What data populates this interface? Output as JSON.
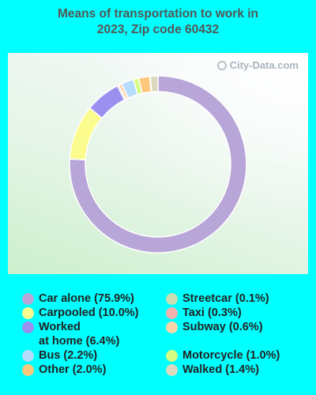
{
  "title_lines": [
    "Means of transportation to work in",
    "2023, Zip code 60432"
  ],
  "watermark": "City-Data.com",
  "chart_data": {
    "type": "pie",
    "style": "donut",
    "title": "Means of transportation to work in 2023, Zip code 60432",
    "legend_placement": "bottom",
    "slices": [
      {
        "label": "Car alone",
        "value": 75.9,
        "color": "#b9a6d8"
      },
      {
        "label": "Carpooled",
        "value": 10.0,
        "color": "#fcfc8e"
      },
      {
        "label": "Worked at home",
        "value": 6.4,
        "color": "#9b8ff0"
      },
      {
        "label": "Taxi",
        "value": 0.3,
        "color": "#f3b1ae"
      },
      {
        "label": "Subway",
        "value": 0.6,
        "color": "#fbd6a8"
      },
      {
        "label": "Bus",
        "value": 2.2,
        "color": "#b6dcfb"
      },
      {
        "label": "Motorcycle",
        "value": 1.0,
        "color": "#d5fc82"
      },
      {
        "label": "Other",
        "value": 2.0,
        "color": "#fcc97c"
      },
      {
        "label": "Streetcar",
        "value": 0.1,
        "color": "#c9ddb0"
      },
      {
        "label": "Walked",
        "value": 1.4,
        "color": "#dcd8c0"
      }
    ]
  },
  "legend": {
    "left": [
      {
        "lines": [
          "Car alone (75.9%)"
        ],
        "color": "#b9a6d8"
      },
      {
        "lines": [
          "Carpooled (10.0%)"
        ],
        "color": "#fcfc8e"
      },
      {
        "lines": [
          "Worked",
          "at home (6.4%)"
        ],
        "color": "#9b8ff0"
      },
      {
        "lines": [
          "Bus (2.2%)"
        ],
        "color": "#b6dcfb"
      },
      {
        "lines": [
          "Other (2.0%)"
        ],
        "color": "#fcc97c"
      }
    ],
    "right": [
      {
        "lines": [
          "Streetcar (0.1%)"
        ],
        "color": "#c9ddb0"
      },
      {
        "lines": [
          "Taxi (0.3%)"
        ],
        "color": "#f3b1ae"
      },
      {
        "lines": [
          "Subway (0.6%)"
        ],
        "color": "#fbd6a8"
      },
      {
        "lines": [
          "Motorcycle (1.0%)"
        ],
        "color": "#d5fc82"
      },
      {
        "lines": [
          "Walked (1.4%)"
        ],
        "color": "#dcd8c0"
      }
    ]
  }
}
